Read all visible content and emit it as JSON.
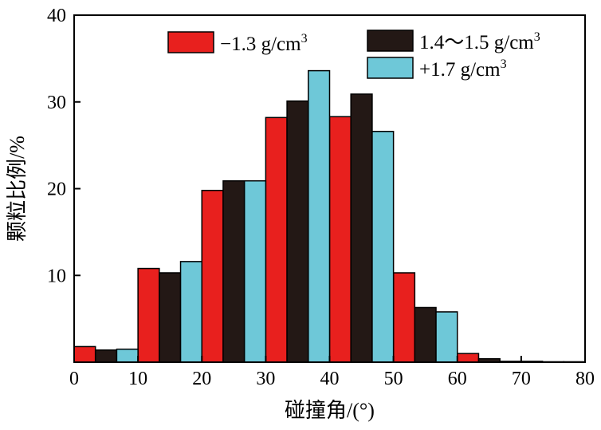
{
  "chart_data": {
    "type": "bar",
    "title": "",
    "xlabel": "碰撞角/(°)",
    "ylabel": "颗粒比例/%",
    "xlim": [
      0,
      80
    ],
    "ylim": [
      0,
      40
    ],
    "xticks": [
      0,
      10,
      20,
      30,
      40,
      50,
      60,
      70,
      80
    ],
    "yticks": [
      10,
      20,
      30,
      40
    ],
    "bin_width": 10,
    "categories": [
      "0-10",
      "10-20",
      "20-30",
      "30-40",
      "40-50",
      "50-60",
      "60-70",
      "70-80"
    ],
    "grid": false,
    "legend_position": "top-right",
    "series": [
      {
        "name": "−1.3 g/cm",
        "sup": "3",
        "color": "#e8201e",
        "values": [
          1.8,
          10.8,
          19.8,
          28.2,
          28.3,
          10.3,
          1.0,
          0.1
        ]
      },
      {
        "name": "1.4～1.5 g/cm",
        "sup": "3",
        "color": "#231815",
        "values": [
          1.4,
          10.3,
          20.9,
          30.1,
          30.9,
          6.3,
          0.4,
          0.05
        ]
      },
      {
        "name": "+1.7 g/cm",
        "sup": "3",
        "color": "#6ec8d8",
        "values": [
          1.5,
          11.6,
          20.9,
          33.6,
          26.6,
          5.8,
          0.1,
          0.05
        ]
      }
    ]
  }
}
